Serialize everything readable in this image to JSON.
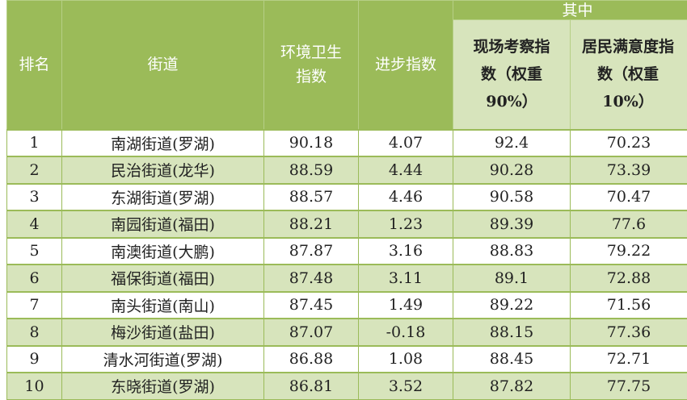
{
  "headers": {
    "rank": "排名",
    "street": "街道",
    "env_index": "环境卫生指数",
    "progress_index": "进步指数",
    "group": "其中",
    "onsite": "现场考察指数（权重90%）",
    "satisfaction": "居民满意度指数（权重10%）"
  },
  "rows": [
    {
      "rank": "1",
      "street": "南湖街道(罗湖)",
      "env": "90.18",
      "progress": "4.07",
      "onsite": "92.4",
      "satisfaction": "70.23"
    },
    {
      "rank": "2",
      "street": "民治街道(龙华)",
      "env": "88.59",
      "progress": "4.44",
      "onsite": "90.28",
      "satisfaction": "73.39"
    },
    {
      "rank": "3",
      "street": "东湖街道(罗湖)",
      "env": "88.57",
      "progress": "4.46",
      "onsite": "90.58",
      "satisfaction": "70.47"
    },
    {
      "rank": "4",
      "street": "南园街道(福田)",
      "env": "88.21",
      "progress": "1.23",
      "onsite": "89.39",
      "satisfaction": "77.6"
    },
    {
      "rank": "5",
      "street": "南澳街道(大鹏)",
      "env": "87.87",
      "progress": "3.16",
      "onsite": "88.83",
      "satisfaction": "79.22"
    },
    {
      "rank": "6",
      "street": "福保街道(福田)",
      "env": "87.48",
      "progress": "3.11",
      "onsite": "89.1",
      "satisfaction": "72.88"
    },
    {
      "rank": "7",
      "street": "南头街道(南山)",
      "env": "87.45",
      "progress": "1.49",
      "onsite": "89.22",
      "satisfaction": "71.56"
    },
    {
      "rank": "8",
      "street": "梅沙街道(盐田)",
      "env": "87.07",
      "progress": "-0.18",
      "onsite": "88.15",
      "satisfaction": "77.36"
    },
    {
      "rank": "9",
      "street": "清水河街道(罗湖)",
      "env": "86.88",
      "progress": "1.08",
      "onsite": "88.45",
      "satisfaction": "72.71"
    },
    {
      "rank": "10",
      "street": "东晓街道(罗湖)",
      "env": "86.81",
      "progress": "3.52",
      "onsite": "87.82",
      "satisfaction": "77.75"
    }
  ],
  "colors": {
    "header": "#9bbb59",
    "subheader": "#d7e4bc",
    "alt_row": "#d7e4bc"
  }
}
